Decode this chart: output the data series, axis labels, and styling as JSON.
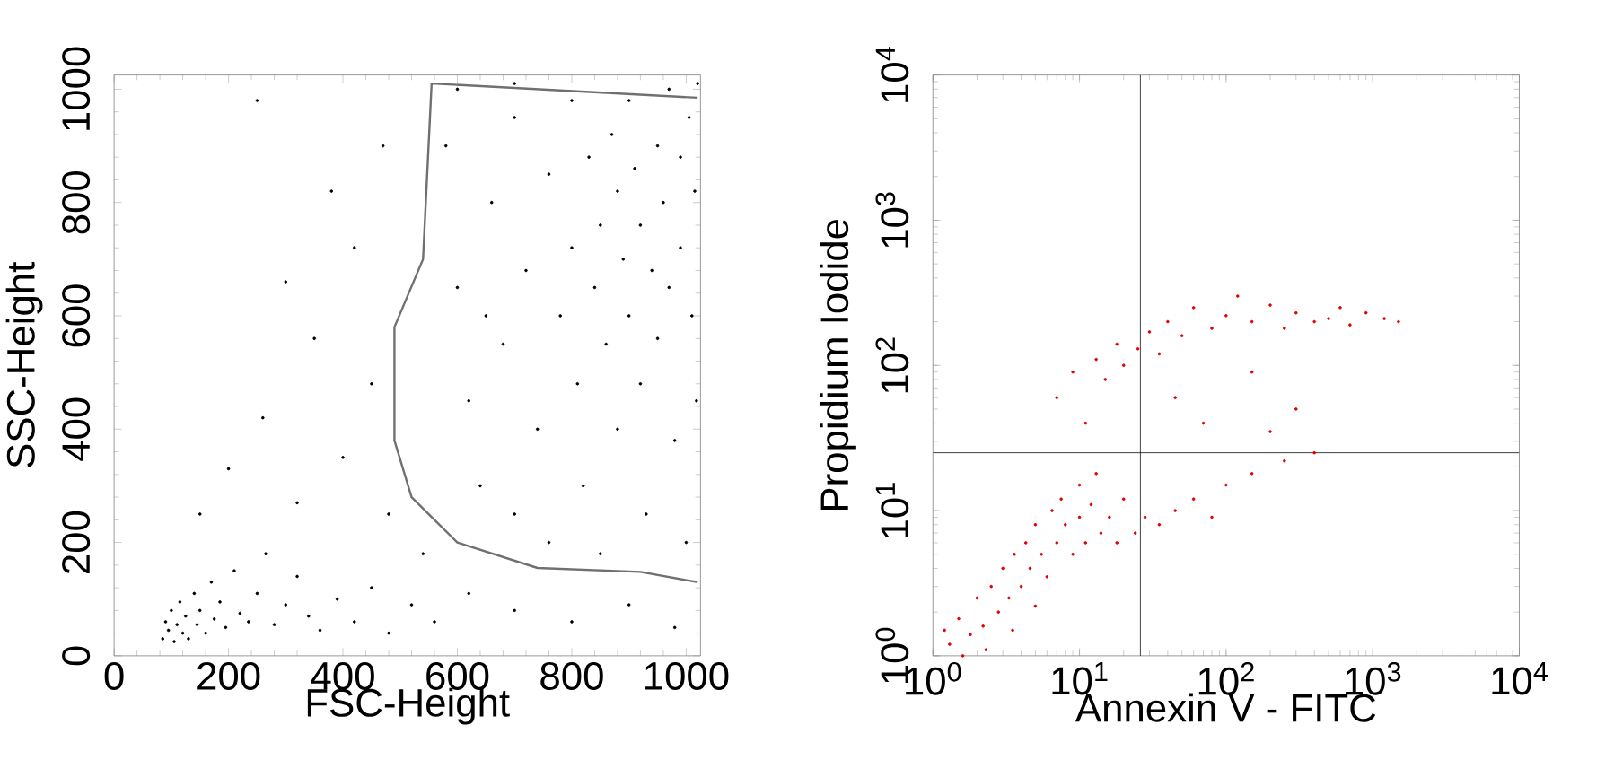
{
  "chart_data": [
    {
      "type": "scatter",
      "xlabel": "FSC-Height",
      "ylabel": "SSC-Height",
      "xlim": [
        0,
        1025
      ],
      "ylim": [
        0,
        1025
      ],
      "xticks": [
        0,
        200,
        400,
        600,
        800,
        1000
      ],
      "yticks": [
        0,
        200,
        400,
        600,
        800,
        1000
      ],
      "marker": "circle",
      "series": [
        {
          "color": "#000000",
          "x": [
            85,
            90,
            95,
            100,
            105,
            110,
            115,
            120,
            125,
            130,
            140,
            145,
            150,
            160,
            170,
            175,
            185,
            195,
            210,
            220,
            235,
            250,
            265,
            280,
            300,
            320,
            340,
            360,
            390,
            420,
            450,
            480,
            520,
            560,
            150,
            200,
            260,
            320,
            350,
            400,
            420,
            450,
            470,
            380,
            300,
            250,
            480,
            540,
            620,
            700,
            800,
            900,
            980,
            580,
            600,
            620,
            640,
            660,
            680,
            700,
            700,
            720,
            740,
            760,
            760,
            780,
            800,
            800,
            810,
            820,
            830,
            840,
            850,
            860,
            870,
            880,
            880,
            890,
            900,
            900,
            910,
            920,
            920,
            930,
            940,
            950,
            950,
            960,
            970,
            970,
            980,
            990,
            990,
            1000,
            1005,
            1010,
            1015,
            1018,
            1020,
            850,
            700,
            650,
            600
          ],
          "values": [
            30,
            60,
            45,
            80,
            25,
            55,
            95,
            40,
            70,
            30,
            110,
            55,
            80,
            40,
            130,
            65,
            95,
            50,
            150,
            75,
            60,
            110,
            180,
            55,
            90,
            140,
            70,
            45,
            100,
            60,
            120,
            40,
            90,
            60,
            250,
            330,
            420,
            270,
            560,
            350,
            720,
            480,
            900,
            820,
            660,
            980,
            250,
            180,
            110,
            80,
            60,
            90,
            50,
            900,
            650,
            450,
            300,
            800,
            550,
            950,
            250,
            680,
            400,
            850,
            200,
            600,
            980,
            720,
            480,
            300,
            880,
            650,
            760,
            550,
            920,
            820,
            400,
            700,
            600,
            980,
            860,
            760,
            480,
            250,
            680,
            900,
            560,
            800,
            1000,
            650,
            380,
            880,
            720,
            200,
            950,
            600,
            820,
            450,
            1010,
            180,
            1010,
            600,
            1000
          ]
        },
        {
          "type": "line",
          "marker": "none",
          "color": "#707070",
          "x": [
            1020,
            555,
            540,
            490,
            490,
            520,
            600,
            740,
            920,
            1020
          ],
          "values": [
            985,
            1010,
            700,
            580,
            380,
            280,
            200,
            155,
            148,
            130
          ]
        }
      ]
    },
    {
      "type": "scatter",
      "xlabel": "Annexin V - FITC",
      "ylabel": "Propidium Iodide",
      "log": "xy",
      "xlim": [
        1,
        10000
      ],
      "ylim": [
        1,
        10000
      ],
      "marker": "circle",
      "xticks": [
        {
          "value": 1,
          "label": "10$^{0}$"
        },
        {
          "value": 10,
          "label": "10$^{1}$"
        },
        {
          "value": 100,
          "label": "10$^{2}$"
        },
        {
          "value": 1000,
          "label": "10$^{3}$"
        },
        {
          "value": 10000,
          "label": "10$^{4}$"
        }
      ],
      "yticks": [
        {
          "value": 1,
          "label": "10$^{0}$"
        },
        {
          "value": 10,
          "label": "10$^{1}$"
        },
        {
          "value": 100,
          "label": "10$^{2}$"
        },
        {
          "value": 1000,
          "label": "10$^{3}$"
        },
        {
          "value": 10000,
          "label": "10$^{4}$"
        }
      ],
      "ref_lines": [
        {
          "axis": "x",
          "value": 26,
          "color": "#000000"
        },
        {
          "axis": "y",
          "value": 25,
          "color": "#000000"
        }
      ],
      "series": [
        {
          "color": "#e00000",
          "x": [
            1.3,
            1.5,
            1.8,
            2,
            2.2,
            2.5,
            2.8,
            3,
            3.3,
            3.6,
            4,
            4.3,
            4.6,
            5,
            5.5,
            6,
            6.5,
            7,
            7.5,
            8,
            9,
            10,
            10,
            11,
            12,
            13,
            14,
            16,
            18,
            20,
            24,
            28,
            35,
            45,
            60,
            80,
            100,
            150,
            250,
            400,
            1.6,
            2.3,
            3.5,
            5,
            1.2,
            7,
            9,
            11,
            13,
            15,
            18,
            20,
            25,
            30,
            35,
            40,
            50,
            60,
            80,
            100,
            120,
            150,
            200,
            250,
            300,
            400,
            500,
            600,
            700,
            900,
            1200,
            1500,
            45,
            70,
            200,
            150,
            300
          ],
          "values": [
            1.2,
            1.8,
            1.4,
            2.5,
            1.6,
            3,
            2,
            4,
            2.5,
            5,
            3,
            6,
            4,
            8,
            5,
            3.5,
            10,
            6,
            12,
            8,
            5,
            15,
            9,
            6,
            11,
            18,
            7,
            9,
            6,
            12,
            7,
            9,
            8,
            10,
            12,
            9,
            15,
            18,
            22,
            25,
            1.0,
            1.1,
            1.5,
            2.2,
            1.5,
            60,
            90,
            40,
            110,
            80,
            140,
            100,
            130,
            170,
            120,
            200,
            160,
            250,
            180,
            220,
            300,
            200,
            260,
            180,
            230,
            200,
            210,
            250,
            190,
            230,
            210,
            200,
            60,
            40,
            35,
            90,
            50
          ]
        }
      ]
    }
  ]
}
